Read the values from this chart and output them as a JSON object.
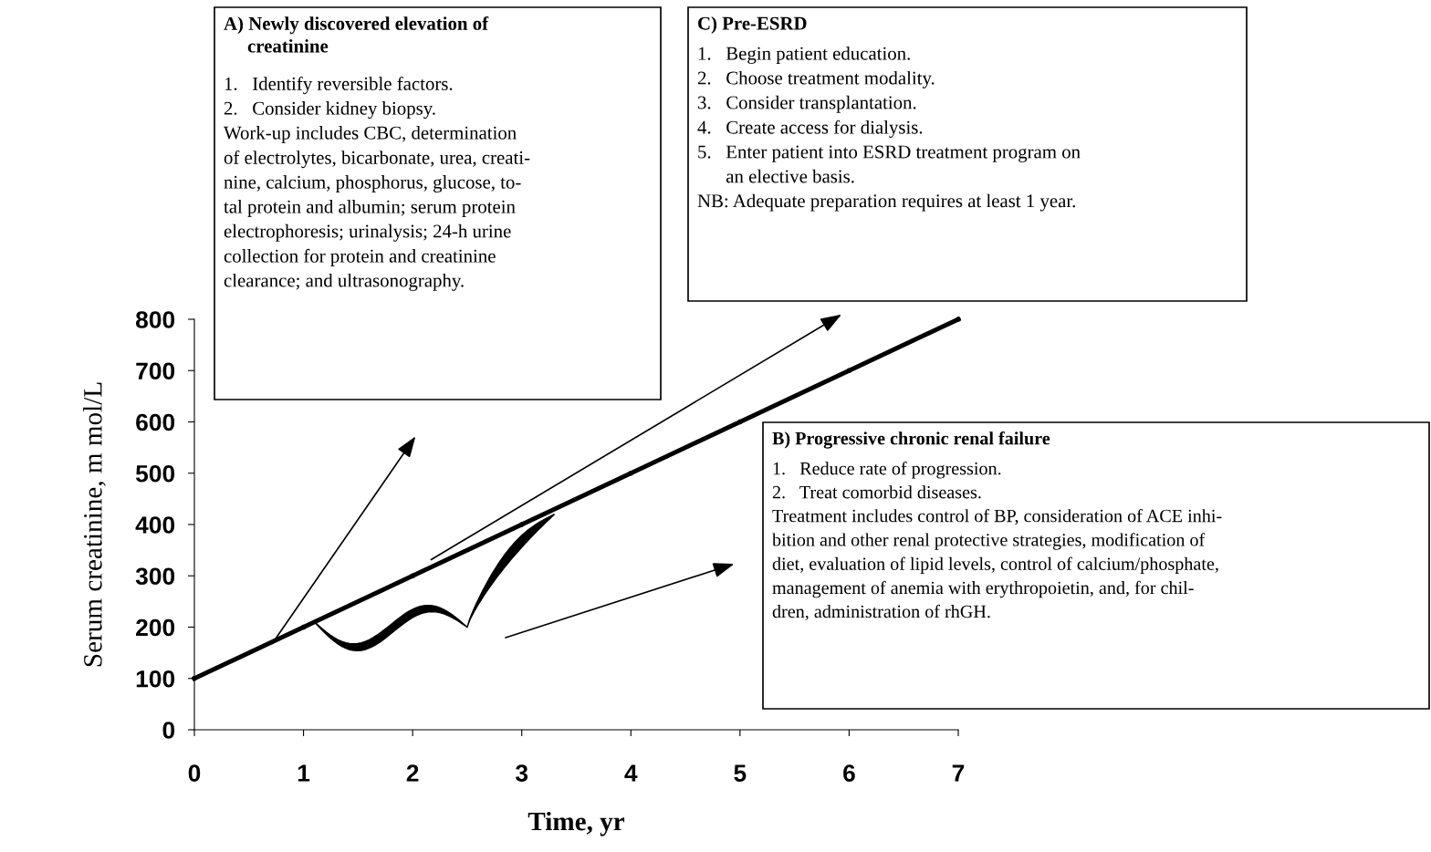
{
  "chart_data": {
    "type": "line",
    "xlabel": "Time, yr",
    "ylabel": "Serum creatinine, m mol/L",
    "x": [
      0,
      1,
      2,
      3,
      4,
      5,
      6,
      7
    ],
    "series": [
      {
        "color": "#000000",
        "values": [
          100,
          200,
          300,
          400,
          500,
          600,
          700,
          800
        ]
      }
    ],
    "xlim": [
      0,
      7
    ],
    "ylim": [
      0,
      800
    ],
    "xticks": [
      0,
      1,
      2,
      3,
      4,
      5,
      6,
      7
    ],
    "yticks": [
      0,
      100,
      200,
      300,
      400,
      500,
      600,
      700,
      800
    ],
    "grid": false,
    "marker": "circle",
    "line_style": "solid",
    "annotations": [
      "A) Newly discovered elevation of\n     creatinine",
      "1.   Identify reversible factors.\n2.   Consider kidney biopsy.\nWork-up includes CBC, determination\nof electrolytes, bicarbonate, urea, creati-\nnine, calcium, phosphorus, glucose, to-\ntal protein and albumin; serum protein\nelectrophoresis; urinalysis; 24-h urine\ncollection for protein and creatinine\nclearance; and ultrasonography.",
      "C) Pre-ESRD",
      "1.   Begin patient education.\n2.   Choose treatment modality.\n3.   Consider transplantation.\n4.   Create access for dialysis.\n5.   Enter patient into ESRD treatment program on\n      an elective basis.\nNB: Adequate preparation requires at least 1 year.",
      "B) Progressive chronic renal failure",
      "1.   Reduce rate of progression.\n2.   Treat comorbid diseases.\nTreatment includes control of BP, consideration of ACE inhi-\nbition and other renal protective strategies, modification of\ndiet, evaluation of lipid levels, control of calcium/phosphate,\nmanagement of anemia with erythropoietin, and, for chil-\ndren, administration of rhGH."
    ]
  }
}
